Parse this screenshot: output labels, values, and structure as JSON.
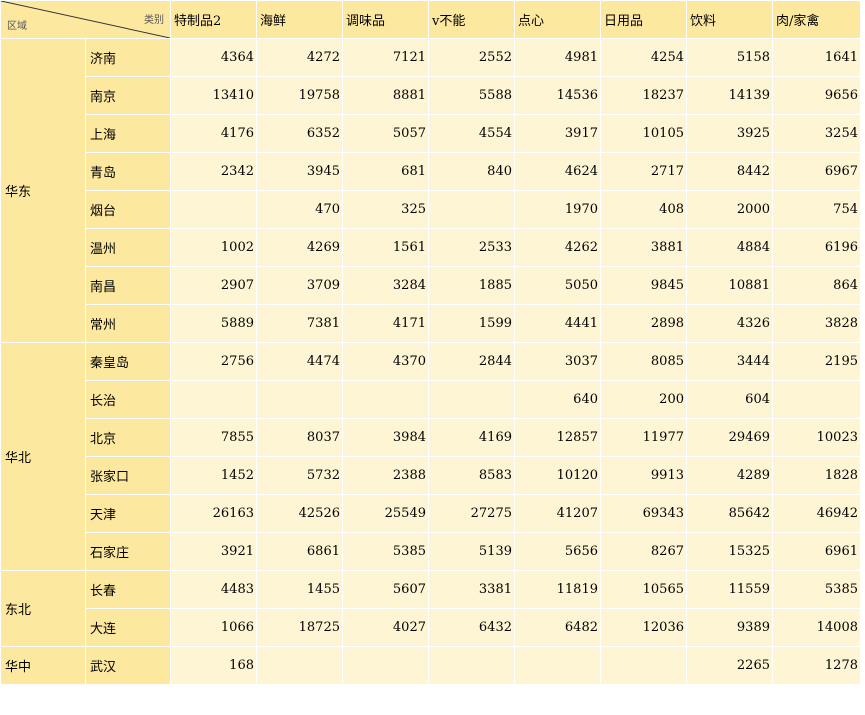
{
  "header": {
    "region_label": "区域",
    "category_label": "类别",
    "columns": [
      "特制品2",
      "海鲜",
      "调味品",
      "v不能",
      "点心",
      "日用品",
      "饮料",
      "肉/家禽"
    ]
  },
  "groups": [
    {
      "region": "华东",
      "rows": [
        {
          "city": "济南",
          "values": [
            "4364",
            "4272",
            "7121",
            "2552",
            "4981",
            "4254",
            "5158",
            "1641"
          ]
        },
        {
          "city": "南京",
          "values": [
            "13410",
            "19758",
            "8881",
            "5588",
            "14536",
            "18237",
            "14139",
            "9656"
          ]
        },
        {
          "city": "上海",
          "values": [
            "4176",
            "6352",
            "5057",
            "4554",
            "3917",
            "10105",
            "3925",
            "3254"
          ]
        },
        {
          "city": "青岛",
          "values": [
            "2342",
            "3945",
            "681",
            "840",
            "4624",
            "2717",
            "8442",
            "6967"
          ]
        },
        {
          "city": "烟台",
          "values": [
            "",
            "470",
            "325",
            "",
            "1970",
            "408",
            "2000",
            "754"
          ]
        },
        {
          "city": "温州",
          "values": [
            "1002",
            "4269",
            "1561",
            "2533",
            "4262",
            "3881",
            "4884",
            "6196"
          ]
        },
        {
          "city": "南昌",
          "values": [
            "2907",
            "3709",
            "3284",
            "1885",
            "5050",
            "9845",
            "10881",
            "864"
          ]
        },
        {
          "city": "常州",
          "values": [
            "5889",
            "7381",
            "4171",
            "1599",
            "4441",
            "2898",
            "4326",
            "3828"
          ]
        }
      ]
    },
    {
      "region": "华北",
      "rows": [
        {
          "city": "秦皇岛",
          "values": [
            "2756",
            "4474",
            "4370",
            "2844",
            "3037",
            "8085",
            "3444",
            "2195"
          ]
        },
        {
          "city": "长治",
          "values": [
            "",
            "",
            "",
            "",
            "640",
            "200",
            "604",
            ""
          ]
        },
        {
          "city": "北京",
          "values": [
            "7855",
            "8037",
            "3984",
            "4169",
            "12857",
            "11977",
            "29469",
            "10023"
          ]
        },
        {
          "city": "张家口",
          "values": [
            "1452",
            "5732",
            "2388",
            "8583",
            "10120",
            "9913",
            "4289",
            "1828"
          ]
        },
        {
          "city": "天津",
          "values": [
            "26163",
            "42526",
            "25549",
            "27275",
            "41207",
            "69343",
            "85642",
            "46942"
          ]
        },
        {
          "city": "石家庄",
          "values": [
            "3921",
            "6861",
            "5385",
            "5139",
            "5656",
            "8267",
            "15325",
            "6961"
          ]
        }
      ]
    },
    {
      "region": "东北",
      "rows": [
        {
          "city": "长春",
          "values": [
            "4483",
            "1455",
            "5607",
            "3381",
            "11819",
            "10565",
            "11559",
            "5385"
          ]
        },
        {
          "city": "大连",
          "values": [
            "1066",
            "18725",
            "4027",
            "6432",
            "6482",
            "12036",
            "9389",
            "14008"
          ]
        }
      ]
    },
    {
      "region": "华中",
      "rows": [
        {
          "city": "武汉",
          "values": [
            "168",
            "",
            "",
            "",
            "",
            "",
            "2265",
            "1278"
          ]
        }
      ]
    }
  ]
}
